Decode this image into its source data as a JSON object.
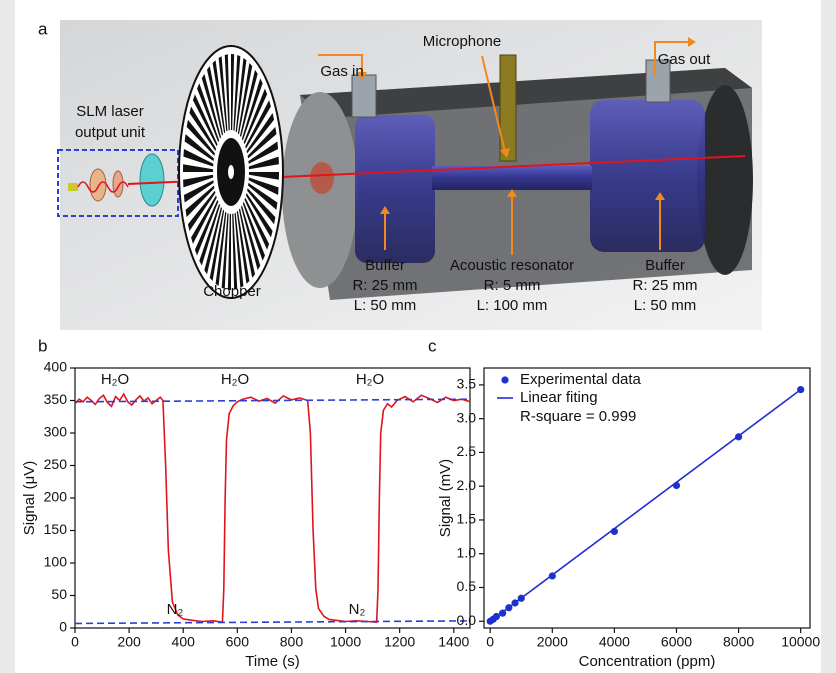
{
  "panels": [
    "a",
    "b",
    "c"
  ],
  "diagram": {
    "laser_unit": [
      "SLM laser",
      "output unit"
    ],
    "chopper": "Chopper",
    "gas_in": "Gas in",
    "gas_out": "Gas out",
    "microphone": "Microphone",
    "buffer_left": [
      "Buffer",
      "R: 25 mm",
      "L: 50 mm"
    ],
    "resonator": [
      "Acoustic resonator",
      "R: 5 mm",
      "L: 100 mm"
    ],
    "buffer_right": [
      "Buffer",
      "R: 25 mm",
      "L: 50 mm"
    ]
  },
  "chart_data": [
    {
      "type": "line",
      "x_label": "Time (s)",
      "y_label": "Signal (μV)",
      "xlim": [
        0,
        1460
      ],
      "ylim": [
        0,
        400
      ],
      "xticks": [
        0,
        200,
        400,
        600,
        800,
        1000,
        1200,
        1400
      ],
      "yticks": [
        0,
        50,
        100,
        150,
        200,
        250,
        300,
        350,
        400
      ],
      "annotations": [
        "H₂O",
        "H₂O",
        "H₂O",
        "N₂",
        "N₂"
      ],
      "series": [
        {
          "mode": "line",
          "color": "#e0141e",
          "x": [
            0,
            15,
            30,
            45,
            60,
            75,
            90,
            105,
            120,
            135,
            150,
            165,
            180,
            195,
            210,
            225,
            240,
            255,
            270,
            285,
            300,
            315,
            325,
            335,
            345,
            360,
            380,
            400,
            430,
            470,
            510,
            545,
            550,
            555,
            560,
            570,
            585,
            600,
            620,
            650,
            680,
            710,
            740,
            770,
            800,
            830,
            860,
            870,
            880,
            890,
            900,
            920,
            940,
            960,
            1000,
            1040,
            1080,
            1115,
            1120,
            1125,
            1130,
            1140,
            1155,
            1170,
            1190,
            1220,
            1250,
            1280,
            1310,
            1340,
            1370,
            1400,
            1430,
            1460
          ],
          "values": [
            345,
            352,
            348,
            355,
            350,
            344,
            353,
            358,
            347,
            341,
            356,
            350,
            360,
            348,
            343,
            351,
            357,
            349,
            354,
            345,
            350,
            355,
            350,
            250,
            120,
            40,
            20,
            14,
            12,
            10,
            11,
            9,
            60,
            200,
            290,
            330,
            342,
            348,
            352,
            355,
            349,
            353,
            346,
            357,
            351,
            354,
            350,
            300,
            150,
            60,
            30,
            18,
            13,
            12,
            10,
            11,
            10,
            9,
            60,
            200,
            300,
            335,
            345,
            340,
            350,
            356,
            348,
            358,
            353,
            347,
            355,
            350,
            352,
            348
          ]
        },
        {
          "mode": "line",
          "dash": true,
          "color": "#2a3fd6",
          "x": [
            0,
            1460
          ],
          "values": [
            348,
            352
          ]
        },
        {
          "mode": "line",
          "dash": true,
          "color": "#2a3fd6",
          "x": [
            0,
            1460
          ],
          "values": [
            7,
            11
          ]
        }
      ]
    },
    {
      "type": "scatter",
      "x_label": "Concentration (ppm)",
      "y_label": "Signal (mV)",
      "xlim": [
        -200,
        10300
      ],
      "ylim": [
        -0.1,
        3.75
      ],
      "xticks": [
        0,
        2000,
        4000,
        6000,
        8000,
        10000
      ],
      "yticks": [
        {
          "value": 0,
          "label": "0.0"
        },
        0.5,
        {
          "value": 1,
          "label": "1.0"
        },
        1.5,
        {
          "value": 2,
          "label": "2.0"
        },
        2.5,
        {
          "value": 3,
          "label": "3.0"
        },
        3.5
      ],
      "legend": "top-left",
      "annotations": [
        "R-square = 0.999"
      ],
      "series": [
        {
          "name": "Experimental data",
          "mode": "markers",
          "color": "#1f2fd0",
          "x": [
            0,
            100,
            200,
            400,
            600,
            800,
            1000,
            2000,
            4000,
            6000,
            8000,
            10000
          ],
          "values": [
            0,
            0.03,
            0.07,
            0.12,
            0.2,
            0.27,
            0.34,
            0.67,
            1.33,
            2.01,
            2.73,
            3.43
          ]
        },
        {
          "name": "Linear fiting",
          "mode": "line",
          "color": "#1f2fd0",
          "x": [
            0,
            10000
          ],
          "values": [
            0,
            3.43
          ]
        }
      ]
    }
  ]
}
